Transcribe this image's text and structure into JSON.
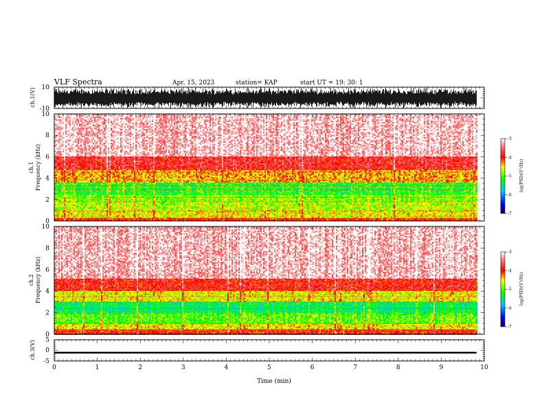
{
  "header": {
    "title": "VLF Spectra",
    "date": "Apr. 15, 2023",
    "station": "station= KAP",
    "start": "start  UT =   19: 30: 1"
  },
  "chart_data": [
    {
      "type": "line",
      "panel": "ch1-waveform",
      "ylabel": "ch.1(V)",
      "ylim": [
        -10,
        10
      ],
      "yticks": [
        "10",
        "-10"
      ],
      "xlim": [
        0,
        10
      ],
      "data_extent_x": [
        0,
        9.82
      ],
      "description_level": "dense waveform filling most of range, clipped near ±10"
    },
    {
      "type": "heatmap",
      "panel": "ch1-spectrogram",
      "ylabel": "ch.1",
      "ylabel2": "Frequency  (kHz)",
      "ylim": [
        0,
        10
      ],
      "yticks": [
        "0",
        "2",
        "4",
        "6",
        "8",
        "10"
      ],
      "xlim": [
        0,
        10
      ],
      "data_extent_x": [
        0,
        9.82
      ],
      "colorbar": {
        "label": "log(PSD)(V²/Hz)",
        "range": [
          -7,
          -3
        ],
        "ticks": [
          "-3",
          "-4",
          "-5",
          "-6",
          "-7"
        ],
        "colors": [
          "#000080",
          "#0000ff",
          "#00ffff",
          "#00ff00",
          "#ffff00",
          "#ff0000",
          "#ffffff"
        ]
      },
      "bands_khz": [
        {
          "from": 0,
          "to": 0.3,
          "level": -4.0
        },
        {
          "from": 0.3,
          "to": 1.0,
          "level": -4.6
        },
        {
          "from": 1.0,
          "to": 1.8,
          "level": -4.8
        },
        {
          "from": 1.8,
          "to": 2.4,
          "level": -4.9
        },
        {
          "from": 2.4,
          "to": 3.6,
          "level": -5.2
        },
        {
          "from": 3.6,
          "to": 4.8,
          "level": -4.4
        },
        {
          "from": 4.8,
          "to": 6.0,
          "level": -3.8
        },
        {
          "from": 6.0,
          "to": 10.0,
          "level": -3.2
        }
      ]
    },
    {
      "type": "heatmap",
      "panel": "ch2-spectrogram",
      "ylabel": "ch.2",
      "ylabel2": "Frequency  (kHz)",
      "ylim": [
        0,
        10
      ],
      "yticks": [
        "0",
        "2",
        "4",
        "6",
        "8",
        "10"
      ],
      "xlim": [
        0,
        10
      ],
      "data_extent_x": [
        0,
        9.82
      ],
      "colorbar": {
        "label": "log(PSD)(V²/Hz)",
        "range": [
          -7,
          -3
        ],
        "ticks": [
          "-3",
          "-4",
          "-5",
          "-6",
          "-7"
        ],
        "colors": [
          "#000080",
          "#0000ff",
          "#00ffff",
          "#00ff00",
          "#ffff00",
          "#ff0000",
          "#ffffff"
        ]
      },
      "bands_khz": [
        {
          "from": 0,
          "to": 0.4,
          "level": -4.0
        },
        {
          "from": 0.4,
          "to": 1.0,
          "level": -4.6
        },
        {
          "from": 1.0,
          "to": 2.0,
          "level": -5.0
        },
        {
          "from": 2.0,
          "to": 3.0,
          "level": -5.4
        },
        {
          "from": 3.0,
          "to": 4.0,
          "level": -4.6
        },
        {
          "from": 4.0,
          "to": 5.2,
          "level": -3.9
        },
        {
          "from": 5.2,
          "to": 10.0,
          "level": -3.2
        }
      ]
    },
    {
      "type": "line",
      "panel": "ch3-waveform",
      "ylabel": "ch.3(V)",
      "ylim": [
        -5,
        5
      ],
      "yticks": [
        "5",
        "0",
        "-5"
      ],
      "xlim": [
        0,
        10
      ],
      "xticks": [
        "0",
        "1",
        "2",
        "3",
        "4",
        "5",
        "6",
        "7",
        "8",
        "9",
        "10"
      ],
      "xlabel": "Time  (min)",
      "data_extent_x": [
        0,
        9.82
      ],
      "signal_band": [
        -1.5,
        -0.7
      ]
    }
  ]
}
